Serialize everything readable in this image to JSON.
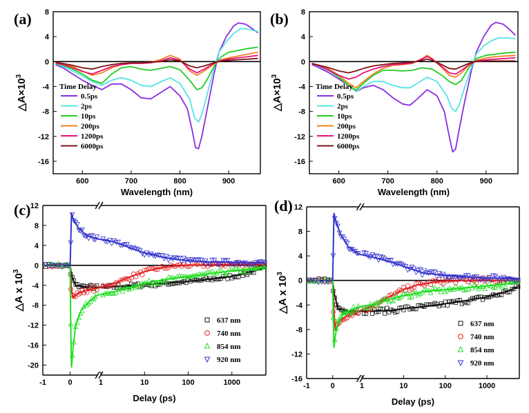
{
  "chart_data": [
    {
      "panel": "(a)",
      "type": "line",
      "xlabel": "Wavelength (nm)",
      "ylabel": "△A×10",
      "ylabel_exp": "3",
      "xlim": [
        540,
        965
      ],
      "ylim": [
        -18,
        8
      ],
      "xticks": [
        600,
        700,
        800,
        900
      ],
      "yticks": [
        8,
        4,
        0,
        -4,
        -8,
        -12,
        -16
      ],
      "legend_title": "Time Delay",
      "series": [
        {
          "name": "0.5ps",
          "color": "#8a2be2",
          "x": [
            545,
            560,
            580,
            600,
            620,
            640,
            660,
            680,
            700,
            720,
            740,
            760,
            780,
            800,
            815,
            825,
            832,
            838,
            845,
            855,
            870,
            880,
            895,
            910,
            920,
            935,
            950,
            960
          ],
          "y": [
            -0.5,
            -1,
            -2,
            -3,
            -3.8,
            -4.5,
            -3.6,
            -3.6,
            -4.5,
            -5.8,
            -6,
            -5,
            -4,
            -5.5,
            -7.5,
            -11,
            -13.8,
            -14,
            -12,
            -8,
            -2,
            1.5,
            4,
            5.7,
            6.2,
            6,
            5.2,
            4.6
          ]
        },
        {
          "name": "2ps",
          "color": "#55e3e3",
          "x": [
            545,
            560,
            580,
            600,
            620,
            640,
            660,
            680,
            700,
            720,
            740,
            760,
            780,
            800,
            820,
            830,
            838,
            845,
            855,
            870,
            880,
            895,
            910,
            925,
            940,
            960
          ],
          "y": [
            -0.3,
            -0.8,
            -1.5,
            -2.3,
            -3.2,
            -3.8,
            -3,
            -2.6,
            -3,
            -3.8,
            -4,
            -3.3,
            -2.6,
            -3.5,
            -6,
            -9,
            -9.7,
            -8.5,
            -5.5,
            -1,
            1.5,
            3.2,
            4.5,
            5.3,
            5.2,
            4.8
          ]
        },
        {
          "name": "10ps",
          "color": "#22cc22",
          "x": [
            545,
            560,
            580,
            600,
            620,
            640,
            660,
            680,
            700,
            720,
            740,
            760,
            780,
            800,
            820,
            835,
            845,
            855,
            870,
            885,
            900,
            920,
            940,
            960
          ],
          "y": [
            -0.3,
            -0.6,
            -1.2,
            -2,
            -3,
            -3.5,
            -2,
            -1,
            -0.8,
            -1.2,
            -1.4,
            -1.1,
            -0.8,
            -1.3,
            -3,
            -4.5,
            -4.2,
            -3,
            -0.8,
            0.8,
            1.5,
            1.8,
            2.1,
            2.3
          ]
        },
        {
          "name": "200ps",
          "color": "#f08020",
          "x": [
            545,
            560,
            580,
            600,
            620,
            640,
            660,
            680,
            700,
            720,
            740,
            760,
            780,
            800,
            820,
            835,
            850,
            870,
            885,
            900,
            920,
            940,
            960
          ],
          "y": [
            -0.2,
            -0.4,
            -0.8,
            -1.5,
            -2.2,
            -1.8,
            -1,
            -0.5,
            -0.3,
            -0.2,
            -0.1,
            0.3,
            1,
            0.4,
            -1.5,
            -2.2,
            -1.5,
            -0.4,
            0.3,
            0.6,
            0.9,
            1.2,
            1.5
          ]
        },
        {
          "name": "1200ps",
          "color": "#e8107a",
          "x": [
            545,
            560,
            580,
            600,
            620,
            640,
            660,
            680,
            700,
            720,
            740,
            760,
            780,
            800,
            820,
            835,
            850,
            870,
            885,
            900,
            920,
            940,
            960
          ],
          "y": [
            -0.2,
            -0.5,
            -1,
            -1.6,
            -2,
            -1.4,
            -0.8,
            -0.5,
            -0.3,
            -0.3,
            -0.2,
            0.1,
            0.6,
            0.2,
            -1.2,
            -1.8,
            -1.2,
            -0.3,
            0.2,
            0.4,
            0.6,
            0.8,
            1
          ]
        },
        {
          "name": "6000ps",
          "color": "#7b1515",
          "x": [
            545,
            560,
            580,
            600,
            620,
            640,
            660,
            680,
            700,
            720,
            740,
            760,
            780,
            800,
            820,
            835,
            850,
            870,
            885,
            900,
            920,
            940,
            960
          ],
          "y": [
            -0.1,
            -0.3,
            -0.6,
            -1,
            -1.2,
            -0.8,
            -0.5,
            -0.3,
            -0.2,
            -0.2,
            -0.1,
            0,
            0.3,
            0.1,
            -0.7,
            -1,
            -0.7,
            -0.2,
            0.1,
            0.2,
            0.3,
            0.4,
            0.5
          ]
        }
      ]
    },
    {
      "panel": "(b)",
      "type": "line",
      "xlabel": "Wavelength (nm)",
      "ylabel": "△A×10",
      "ylabel_exp": "3",
      "xlim": [
        540,
        965
      ],
      "ylim": [
        -18,
        8
      ],
      "xticks": [
        600,
        700,
        800,
        900
      ],
      "yticks": [
        8,
        4,
        0,
        -4,
        -8,
        -12,
        -16
      ],
      "legend_title": "Time Delay",
      "series": [
        {
          "name": "0.5ps",
          "color": "#8a2be2",
          "x": [
            545,
            560,
            580,
            600,
            620,
            635,
            650,
            670,
            690,
            710,
            730,
            745,
            760,
            780,
            800,
            815,
            825,
            832,
            838,
            845,
            855,
            870,
            880,
            895,
            910,
            920,
            935,
            950,
            960
          ],
          "y": [
            -0.5,
            -1,
            -1.8,
            -2.8,
            -3.8,
            -4.8,
            -4.2,
            -3.8,
            -4.5,
            -5.8,
            -6.8,
            -7,
            -6,
            -4.5,
            -5.5,
            -8,
            -12,
            -14.5,
            -14,
            -11,
            -7,
            -1.5,
            1.5,
            4,
            5.8,
            6.3,
            6,
            5,
            4.2
          ]
        },
        {
          "name": "2ps",
          "color": "#55e3e3",
          "x": [
            545,
            560,
            580,
            600,
            620,
            635,
            650,
            670,
            690,
            710,
            730,
            745,
            760,
            780,
            800,
            820,
            830,
            838,
            845,
            855,
            870,
            880,
            895,
            910,
            925,
            940,
            960
          ],
          "y": [
            -0.4,
            -0.8,
            -1.5,
            -2.5,
            -3.8,
            -4.8,
            -4,
            -3.2,
            -3.2,
            -3.8,
            -4.2,
            -4.2,
            -3.5,
            -2.5,
            -3.2,
            -5.5,
            -7.5,
            -8,
            -7,
            -4.5,
            -1,
            1.2,
            2.5,
            3.3,
            3.8,
            3.8,
            3.7
          ]
        },
        {
          "name": "10ps",
          "color": "#22cc22",
          "x": [
            545,
            560,
            580,
            600,
            620,
            635,
            650,
            670,
            690,
            710,
            730,
            750,
            770,
            790,
            810,
            825,
            838,
            850,
            865,
            880,
            900,
            920,
            940,
            960
          ],
          "y": [
            -0.3,
            -0.7,
            -1.4,
            -2.5,
            -3.8,
            -4.6,
            -3.5,
            -2.2,
            -1.4,
            -1.4,
            -1.5,
            -1.4,
            -1,
            -1.2,
            -2.2,
            -3.2,
            -3.7,
            -3,
            -1,
            0.5,
            1,
            1.2,
            1.4,
            1.5
          ]
        },
        {
          "name": "200ps",
          "color": "#f08020",
          "x": [
            545,
            560,
            580,
            600,
            620,
            635,
            650,
            670,
            690,
            710,
            730,
            750,
            770,
            780,
            790,
            810,
            825,
            838,
            850,
            865,
            880,
            900,
            920,
            940,
            960
          ],
          "y": [
            -0.3,
            -0.6,
            -1.2,
            -2.2,
            -3.5,
            -4.2,
            -3.2,
            -2,
            -1.1,
            -0.6,
            -0.5,
            -0.3,
            0.5,
            1,
            0.5,
            -1,
            -2.2,
            -2.5,
            -1.8,
            -0.6,
            0.2,
            0.6,
            0.8,
            0.9,
            1
          ]
        },
        {
          "name": "1200ps",
          "color": "#e8107a",
          "x": [
            545,
            560,
            580,
            600,
            620,
            635,
            650,
            670,
            690,
            710,
            730,
            750,
            770,
            780,
            790,
            810,
            825,
            838,
            850,
            865,
            880,
            900,
            920,
            940,
            960
          ],
          "y": [
            -0.4,
            -0.7,
            -1.4,
            -2.2,
            -2.8,
            -2.5,
            -1.8,
            -1.2,
            -0.8,
            -0.5,
            -0.4,
            -0.2,
            0.4,
            0.8,
            0.4,
            -0.8,
            -1.8,
            -2,
            -1.4,
            -0.5,
            0.1,
            0.3,
            0.4,
            0.5,
            0.6
          ]
        },
        {
          "name": "6000ps",
          "color": "#7b1515",
          "x": [
            545,
            560,
            580,
            600,
            620,
            635,
            650,
            670,
            690,
            710,
            730,
            750,
            770,
            780,
            790,
            810,
            825,
            838,
            850,
            865,
            880,
            900,
            920,
            940,
            960
          ],
          "y": [
            -0.3,
            -0.6,
            -1,
            -1.5,
            -1.8,
            -1.5,
            -1.1,
            -0.7,
            -0.5,
            -0.3,
            -0.2,
            -0.1,
            0.2,
            0.4,
            0.2,
            -0.5,
            -1.1,
            -1.2,
            -0.8,
            -0.3,
            0,
            0.1,
            0.1,
            0.1,
            0.1
          ]
        }
      ]
    },
    {
      "panel": "(c)",
      "type": "scatter",
      "xlabel": "Delay (ps)",
      "ylabel": "△A x 10",
      "ylabel_exp": "3",
      "x_scale": "broken: linear [-1,1] then log [1,6000]",
      "xlim_linear": [
        -1,
        1
      ],
      "xlim_log": [
        1,
        6000
      ],
      "ylim": [
        -22,
        12
      ],
      "xtick_labels": [
        "-1",
        "0",
        "1",
        "10",
        "100",
        "1000"
      ],
      "yticks": [
        12,
        8,
        4,
        0,
        -4,
        -8,
        -12,
        -16,
        -20
      ],
      "series": [
        {
          "name": "637 nm",
          "color": "#111111",
          "marker": "square",
          "fit_x": [
            0.05,
            0.2,
            0.5,
            1,
            2,
            5,
            10,
            30,
            100,
            300,
            1000,
            3000,
            6000
          ],
          "fit_y": [
            -2,
            -4,
            -4.3,
            -4.4,
            -4.3,
            -4.1,
            -3.9,
            -3.6,
            -3.2,
            -2.8,
            -2.2,
            -1.2,
            -0.5
          ]
        },
        {
          "name": "740 nm",
          "color": "#e02020",
          "marker": "circle",
          "fit_x": [
            0.05,
            0.1,
            0.3,
            0.6,
            1,
            2,
            5,
            10,
            20,
            50,
            100,
            300,
            1000,
            6000
          ],
          "fit_y": [
            -5,
            -6.5,
            -5.6,
            -5,
            -4.6,
            -3.6,
            -2.2,
            -1.3,
            -0.6,
            -0.1,
            0,
            0.1,
            0.2,
            0.2
          ]
        },
        {
          "name": "854 nm",
          "color": "#22dd22",
          "marker": "triangle-up",
          "fit_x": [
            0.02,
            0.05,
            0.1,
            0.2,
            0.4,
            0.7,
            1,
            2,
            5,
            10,
            30,
            100,
            300,
            1000,
            6000
          ],
          "fit_y": [
            -12,
            -20.5,
            -17,
            -12,
            -9,
            -7.2,
            -6,
            -5.3,
            -4.3,
            -3.6,
            -2.8,
            -2.2,
            -1.7,
            -1.1,
            -0.4
          ]
        },
        {
          "name": "920 nm",
          "color": "#3333cc",
          "marker": "triangle-down",
          "fit_x": [
            0,
            0.05,
            0.1,
            0.3,
            0.6,
            1,
            2,
            5,
            10,
            30,
            100,
            300,
            1000,
            6000
          ],
          "fit_y": [
            0,
            10.5,
            9.5,
            7.5,
            6,
            5.3,
            4.7,
            3.4,
            2.5,
            1.5,
            0.9,
            0.7,
            0.6,
            0.5
          ]
        }
      ]
    },
    {
      "panel": "(d)",
      "type": "scatter",
      "xlabel": "Delay (ps)",
      "ylabel": "△A x 10",
      "ylabel_exp": "3",
      "x_scale": "broken: linear [-1,1] then log [1,6000]",
      "xlim_linear": [
        -1,
        1
      ],
      "xlim_log": [
        1,
        6000
      ],
      "ylim": [
        -16,
        12
      ],
      "xtick_labels": [
        "-1",
        "0",
        "1",
        "10",
        "100",
        "1000"
      ],
      "yticks": [
        12,
        8,
        4,
        0,
        -4,
        -8,
        -12,
        -16
      ],
      "series": [
        {
          "name": "637 nm",
          "color": "#111111",
          "marker": "square",
          "fit_x": [
            0.05,
            0.2,
            0.5,
            1,
            2,
            5,
            10,
            30,
            100,
            300,
            1000,
            3000,
            6000
          ],
          "fit_y": [
            -2,
            -4.6,
            -5,
            -5,
            -5,
            -4.9,
            -4.6,
            -4.3,
            -3.8,
            -3.3,
            -2.7,
            -1.8,
            -1
          ]
        },
        {
          "name": "740 nm",
          "color": "#e02020",
          "marker": "circle",
          "fit_x": [
            0.05,
            0.1,
            0.3,
            0.6,
            1,
            2,
            5,
            10,
            20,
            50,
            100,
            300,
            1000,
            6000
          ],
          "fit_y": [
            -5,
            -8,
            -6.5,
            -5.6,
            -5,
            -4,
            -2.5,
            -1.5,
            -0.8,
            -0.3,
            -0.1,
            0,
            0,
            0
          ]
        },
        {
          "name": "854 nm",
          "color": "#22dd22",
          "marker": "triangle-up",
          "fit_x": [
            0.02,
            0.05,
            0.1,
            0.2,
            0.4,
            0.7,
            1,
            2,
            5,
            10,
            30,
            100,
            300,
            1000,
            6000
          ],
          "fit_y": [
            -6,
            -11,
            -9,
            -7,
            -5.5,
            -4.8,
            -4.3,
            -3.9,
            -3,
            -2.5,
            -1.8,
            -1.5,
            -1.2,
            -0.9,
            -0.3
          ]
        },
        {
          "name": "920 nm",
          "color": "#3333cc",
          "marker": "triangle-down",
          "fit_x": [
            0,
            0.05,
            0.1,
            0.3,
            0.6,
            1,
            2,
            5,
            10,
            30,
            100,
            300,
            1000,
            6000
          ],
          "fit_y": [
            0,
            11,
            10,
            7.5,
            5.5,
            4.3,
            3.7,
            3,
            2.3,
            1.2,
            0.8,
            0.6,
            0.4,
            0.3
          ]
        }
      ]
    }
  ]
}
